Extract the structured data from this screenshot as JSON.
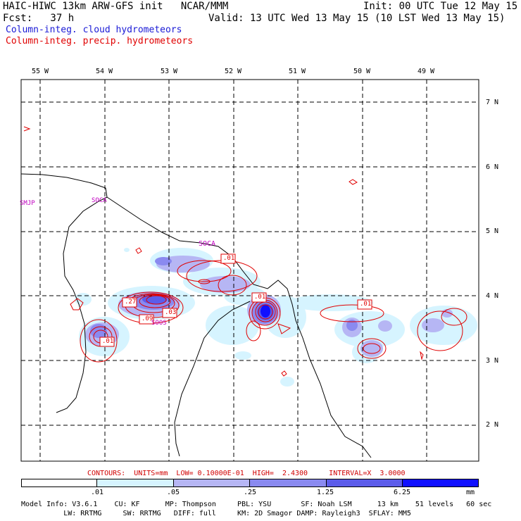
{
  "header": {
    "title_left": "HAIC-HIWC 13km ARW-GFS init   NCAR/MMM",
    "init": "Init: 00 UTC Tue 12 May 15",
    "fcst": "Fcst:   37 h",
    "valid": "Valid: 13 UTC Wed 13 May 15 (10 LST Wed 13 May 15)",
    "legend_cloud": "Column-integ. cloud hydrometeors",
    "legend_precip": "Column-integ. precip. hydrometeors"
  },
  "colors": {
    "cloud": "#1a1ad6",
    "precip": "#e00000",
    "station": "#c000c0",
    "shade": [
      "#ffffff",
      "#d6f4ff",
      "#b6b6f4",
      "#8a8af0",
      "#5c5cea",
      "#1010ff"
    ]
  },
  "axes": {
    "lon_labels": [
      "55 W",
      "54 W",
      "53 W",
      "52 W",
      "51 W",
      "50 W",
      "49 W"
    ],
    "lat_labels": [
      "7 N",
      "6 N",
      "5 N",
      "4 N",
      "3 N",
      "2 N"
    ]
  },
  "stations": [
    "SMJP",
    "SOCA",
    "SOCA",
    "SOOS"
  ],
  "contour_labels": [
    ".01",
    ".27",
    ".03",
    ".09",
    ".01",
    ".01",
    ".01"
  ],
  "contours_info": {
    "text": "CONTOURS:  UNITS=mm  LOW= 0.10000E-01  HIGH=  2.4300     INTERVAL=X  3.0000"
  },
  "colorbar": {
    "labels": [
      ".01",
      ".05",
      ".25",
      "1.25",
      "6.25"
    ],
    "units": "mm"
  },
  "model_info": {
    "line1": "Model Info: V3.6.1    CU: KF      MP: Thompson     PBL: YSU       SF: Noah LSM      13 km    51 levels   60 sec",
    "line2": "          LW: RRTMG     SW: RRTMG   DIFF: full     KM: 2D Smagor DAMP: Rayleigh3  SFLAY: MM5"
  }
}
